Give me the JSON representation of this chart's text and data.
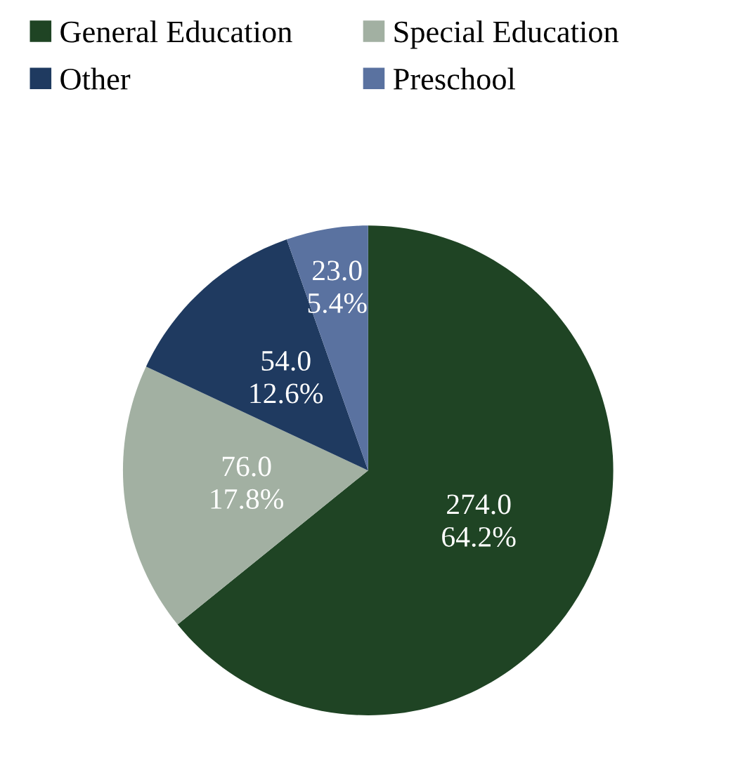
{
  "chart_data": {
    "type": "pie",
    "categories": [
      "General Education",
      "Special Education",
      "Other",
      "Preschool"
    ],
    "values": [
      274.0,
      76.0,
      54.0,
      23.0
    ],
    "colors": [
      "#1f4424",
      "#a2b0a2",
      "#1f3a60",
      "#5a72a0"
    ],
    "value_labels": [
      "274.0\n64.2%",
      "76.0\n17.8%",
      "54.0\n12.6%",
      "23.0\n5.4%"
    ],
    "legend": "top"
  }
}
